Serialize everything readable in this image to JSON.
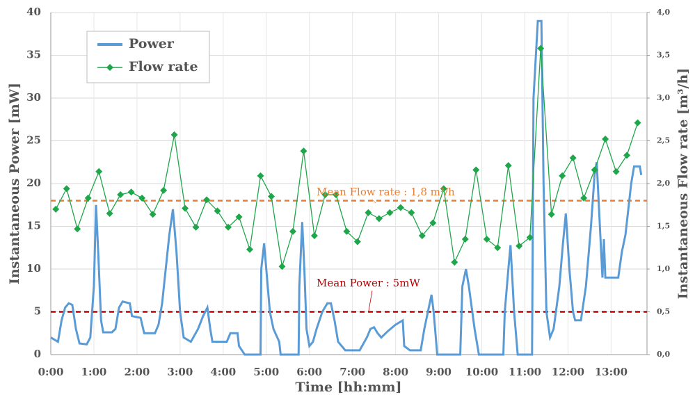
{
  "chart_data": {
    "type": "line",
    "x_label": "Time [hh:mm]",
    "y_label": "Instantaneous Power [mW]",
    "y2_label": "Instantaneous Flow rate [m³/h]",
    "xlim": [
      0,
      830
    ],
    "xticks": [
      {
        "value": 0,
        "label": "0:00"
      },
      {
        "value": 60,
        "label": "1:00"
      },
      {
        "value": 120,
        "label": "2:00"
      },
      {
        "value": 180,
        "label": "3:00"
      },
      {
        "value": 240,
        "label": "4:00"
      },
      {
        "value": 300,
        "label": "5:00"
      },
      {
        "value": 360,
        "label": "6:00"
      },
      {
        "value": 420,
        "label": "7:00"
      },
      {
        "value": 480,
        "label": "8:00"
      },
      {
        "value": 540,
        "label": "9:00"
      },
      {
        "value": 600,
        "label": "10:00"
      },
      {
        "value": 660,
        "label": "11:00"
      },
      {
        "value": 720,
        "label": "12:00"
      },
      {
        "value": 780,
        "label": "13:00"
      }
    ],
    "ylim": [
      0,
      40
    ],
    "yticks": [
      0,
      5,
      10,
      15,
      20,
      25,
      30,
      35,
      40
    ],
    "y2lim": [
      0,
      4
    ],
    "y2ticks": [
      {
        "value": 0,
        "label": "0,0"
      },
      {
        "value": 0.5,
        "label": "0,5"
      },
      {
        "value": 1,
        "label": "1,0"
      },
      {
        "value": 1.5,
        "label": "1,5"
      },
      {
        "value": 2,
        "label": "2,0"
      },
      {
        "value": 2.5,
        "label": "2,5"
      },
      {
        "value": 3,
        "label": "3,0"
      },
      {
        "value": 3.5,
        "label": "3,5"
      },
      {
        "value": 4,
        "label": "4,0"
      }
    ],
    "grid": true,
    "legend": "upper left",
    "series": [
      {
        "name": "Power",
        "color": "#5b9bd5",
        "axis": "y",
        "x": [
          0,
          10,
          15,
          20,
          25,
          30,
          35,
          40,
          50,
          55,
          60,
          63,
          66,
          70,
          73,
          85,
          90,
          95,
          100,
          110,
          113,
          125,
          130,
          145,
          150,
          155,
          160,
          165,
          170,
          175,
          180,
          185,
          195,
          205,
          212,
          218,
          222,
          225,
          245,
          250,
          260,
          262,
          270,
          292,
          293,
          297,
          300,
          305,
          310,
          318,
          320,
          345,
          346,
          350,
          353,
          356,
          360,
          365,
          370,
          378,
          385,
          390,
          395,
          400,
          410,
          430,
          440,
          445,
          450,
          455,
          460,
          470,
          480,
          490,
          492,
          500,
          515,
          520,
          530,
          533,
          538,
          570,
          573,
          578,
          582,
          590,
          596,
          630,
          632,
          637,
          640,
          645,
          650,
          670,
          672,
          678,
          683,
          686,
          690,
          695,
          700,
          708,
          713,
          717,
          722,
          727,
          730,
          738,
          745,
          752,
          757,
          760,
          765,
          768,
          770,
          772,
          790,
          795,
          800,
          808,
          812,
          820,
          822
        ],
        "values": [
          2,
          1.5,
          4,
          5.5,
          6,
          5.8,
          3,
          1.3,
          1.2,
          2,
          8,
          17.5,
          12,
          4,
          2.6,
          2.6,
          3,
          5.5,
          6.2,
          6,
          4.5,
          4.3,
          2.5,
          2.5,
          3.5,
          6,
          10,
          14,
          17,
          12,
          5,
          2,
          1.5,
          3,
          4.5,
          5.5,
          3,
          1.5,
          1.5,
          2.5,
          2.5,
          1,
          0,
          0,
          10,
          13,
          10,
          5,
          3,
          1.5,
          0,
          0,
          8,
          15.5,
          10,
          3,
          1,
          1.5,
          3,
          5,
          6,
          6,
          4,
          1.5,
          0.5,
          0.5,
          2,
          3,
          3.2,
          2.5,
          2,
          2.8,
          3.5,
          4,
          1,
          0.5,
          0.5,
          3,
          7,
          5,
          0,
          0,
          8,
          10,
          8,
          3,
          0,
          0,
          5,
          10,
          12.8,
          5,
          0,
          0,
          30,
          39,
          39,
          20,
          5,
          2,
          3,
          8,
          13,
          16.5,
          10,
          5,
          4,
          4,
          8,
          15,
          21,
          22.5,
          14,
          9,
          13.5,
          9,
          9,
          12,
          14,
          20,
          22,
          22,
          21
        ]
      },
      {
        "name": "Flow rate",
        "color": "#1fa64a",
        "axis": "y2",
        "x": [
          7,
          22,
          37,
          52,
          67,
          82,
          97,
          112,
          127,
          142,
          157,
          172,
          187,
          202,
          217,
          232,
          247,
          262,
          277,
          292,
          307,
          322,
          337,
          352,
          367,
          382,
          397,
          412,
          427,
          442,
          457,
          472,
          487,
          502,
          517,
          532,
          547,
          562,
          577,
          592,
          607,
          622,
          637,
          652,
          667,
          682,
          697,
          712,
          727,
          742,
          757,
          772,
          787,
          802,
          817
        ],
        "values": [
          1.7,
          1.94,
          1.47,
          1.83,
          2.14,
          1.65,
          1.87,
          1.9,
          1.83,
          1.64,
          1.92,
          2.57,
          1.71,
          1.49,
          1.81,
          1.68,
          1.49,
          1.61,
          1.23,
          2.09,
          1.85,
          1.03,
          1.44,
          2.38,
          1.39,
          1.87,
          1.87,
          1.44,
          1.32,
          1.66,
          1.59,
          1.66,
          1.72,
          1.66,
          1.39,
          1.54,
          1.94,
          1.08,
          1.35,
          2.16,
          1.35,
          1.25,
          2.21,
          1.27,
          1.37,
          3.58,
          1.64,
          2.09,
          2.3,
          1.83,
          2.16,
          2.52,
          2.14,
          2.33,
          2.71
        ]
      }
    ],
    "mean_lines": [
      {
        "value": 1.8,
        "axis": "y2",
        "color": "#ed7d31",
        "label": "Mean Flow rate : 1,8 m³/h"
      },
      {
        "value": 5,
        "axis": "y",
        "color": "#c00000",
        "label": "Mean Power : 5mW"
      }
    ]
  }
}
